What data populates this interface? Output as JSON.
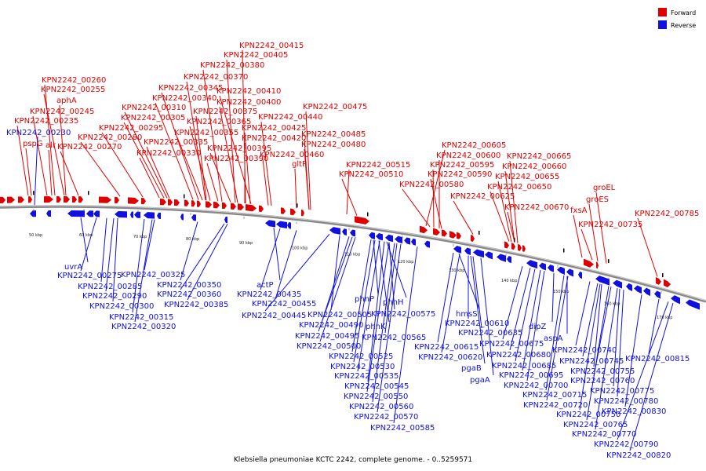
{
  "caption": "Klebsiella pneumoniae KCTC 2242, complete genome. - 0..5259571",
  "legend": [
    {
      "label": "Forward",
      "color": "#e00000"
    },
    {
      "label": "Reverse",
      "color": "#1010e0"
    }
  ],
  "colors": {
    "forward": "#e00000",
    "reverse": "#1010e0",
    "backbone": "#888888"
  },
  "ticks": [
    "50 kbp",
    "60 kbp",
    "70 kbp",
    "80 kbp",
    "90 kbp",
    "100 kbp",
    "110 kbp",
    "120 kbp",
    "130 kbp",
    "140 kbp",
    "150 kbp",
    "160 kbp",
    "170 kbp"
  ],
  "forward_labels": [
    "KPN2242_00415",
    "KPN2242_00405",
    "KPN2242_00380",
    "KPN2242_00370",
    "KPN2242_00260",
    "KPN2242_00345",
    "KPN2242_00410",
    "KPN2242_00255",
    "KPN2242_00340",
    "KPN2242_00400",
    "aphA",
    "KPN2242_00310",
    "KPN2242_00375",
    "KPN2242_00475",
    "KPN2242_00245",
    "KPN2242_00305",
    "KPN2242_00365",
    "KPN2242_00440",
    "KPN2242_00235",
    "KPN2242_00295",
    "KPN2242_00355",
    "KPN2242_00425",
    "KPN2242_00485",
    "KPN2242_00280",
    "KPN2242_00335",
    "KPN2242_00420",
    "pspG",
    "alr",
    "KPN2242_00270",
    "KPN2242_00395",
    "KPN2242_00480",
    "KPN2242_00330",
    "KPN2242_00390",
    "KPN2242_00460",
    "gltP",
    "KPN2242_00515",
    "KPN2242_00510",
    "KPN2242_00605",
    "KPN2242_00600",
    "KPN2242_00595",
    "KPN2242_00590",
    "KPN2242_00580",
    "KPN2242_00625",
    "KPN2242_00665",
    "KPN2242_00660",
    "KPN2242_00655",
    "KPN2242_00650",
    "KPN2242_00670",
    "groEL",
    "groES",
    "fxsA",
    "KPN2242_00785",
    "KPN2242_00735"
  ],
  "reverse_labels": [
    "KPN2242_00230",
    "uvrA",
    "KPN2242_00275",
    "KPN2242_00325",
    "KPN2242_00285",
    "KPN2242_00350",
    "KPN2242_00290",
    "KPN2242_00360",
    "KPN2242_00300",
    "KPN2242_00385",
    "KPN2242_00315",
    "KPN2242_00320",
    "actP",
    "KPN2242_00435",
    "KPN2242_00455",
    "KPN2242_00445",
    "KPN2242_00505",
    "KPN2242_00490",
    "KPN2242_00495",
    "KPN2242_00500",
    "KPN2242_00525",
    "KPN2242_00530",
    "KPN2242_00535",
    "KPN2242_00545",
    "KPN2242_00550",
    "KPN2242_00560",
    "KPN2242_00570",
    "KPN2242_00585",
    "phnP",
    "phnH",
    "phnK",
    "KPN2242_00575",
    "KPN2242_00565",
    "hmsS",
    "KPN2242_00610",
    "KPN2242_00635",
    "KPN2242_00615",
    "KPN2242_00620",
    "pgaB",
    "pgaA",
    "KPN2242_00675",
    "KPN2242_00680",
    "KPN2242_00685",
    "KPN2242_00695",
    "KPN2242_00700",
    "KPN2242_00715",
    "KPN2242_00720",
    "dipZ",
    "aspA",
    "KPN2242_00740",
    "KPN2242_00745",
    "KPN2242_00755",
    "KPN2242_00760",
    "KPN2242_00815",
    "KPN2242_00775",
    "KPN2242_00780",
    "KPN2242_00830",
    "KPN2242_00750",
    "KPN2242_00765",
    "KPN2242_00770",
    "KPN2242_00790",
    "KPN2242_00820"
  ]
}
